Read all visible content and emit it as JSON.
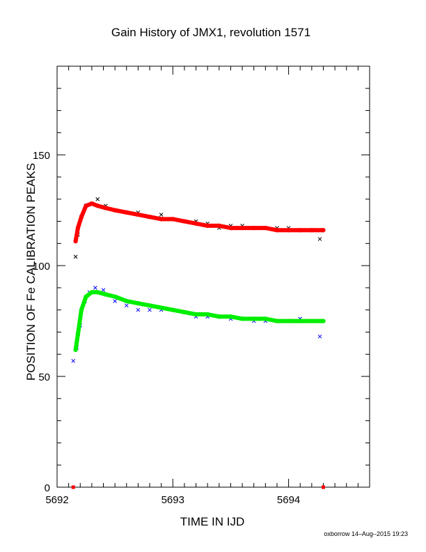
{
  "chart_data": {
    "type": "scatter",
    "title": "Gain History of JMX1, revolution 1571",
    "xlabel": "TIME IN IJD",
    "ylabel": "POSITION OF Fe CALIBRATION PEAKS",
    "xlim": [
      5692.0,
      5694.7
    ],
    "ylim": [
      0,
      190
    ],
    "x_ticks": [
      5692,
      5693,
      5694
    ],
    "x_tick_labels": [
      "5692",
      "5693",
      "5694"
    ],
    "y_ticks": [
      0,
      50,
      100,
      150
    ],
    "y_tick_labels": [
      "0",
      "50",
      "100",
      "150"
    ],
    "grid": false,
    "legend": "none",
    "colors": {
      "upper_points": "#000000",
      "upper_fit": "#ff0000",
      "lower_points": "#0000ff",
      "lower_fit": "#00ee00"
    },
    "series": [
      {
        "role": "upper_peak_measurements",
        "marker": "x",
        "color": "#000000",
        "x": [
          5692.16,
          5692.18,
          5692.21,
          5692.25,
          5692.3,
          5692.35,
          5692.42,
          5692.5,
          5692.6,
          5692.7,
          5692.8,
          5692.9,
          5693.0,
          5693.1,
          5693.2,
          5693.3,
          5693.4,
          5693.5,
          5693.6,
          5693.7,
          5693.8,
          5693.9,
          5694.0,
          5694.1,
          5694.2,
          5694.27
        ],
        "y": [
          104,
          114,
          122,
          127,
          128,
          130,
          127,
          125,
          124,
          124,
          122,
          123,
          121,
          120,
          120,
          119,
          117,
          118,
          118,
          117,
          117,
          117,
          117,
          116,
          116,
          112
        ]
      },
      {
        "role": "upper_peak_fit",
        "marker": "+",
        "color": "#ff0000",
        "x": [
          5692.16,
          5692.18,
          5692.21,
          5692.25,
          5692.3,
          5692.35,
          5692.42,
          5692.5,
          5692.6,
          5692.7,
          5692.8,
          5692.9,
          5693.0,
          5693.1,
          5693.2,
          5693.3,
          5693.4,
          5693.5,
          5693.6,
          5693.7,
          5693.8,
          5693.9,
          5694.0,
          5694.1,
          5694.2,
          5694.3
        ],
        "y": [
          111,
          117,
          122,
          127,
          128,
          127,
          126,
          125,
          124,
          123,
          122,
          121,
          121,
          120,
          119,
          118,
          118,
          117,
          117,
          117,
          117,
          116,
          116,
          116,
          116,
          116
        ]
      },
      {
        "role": "lower_peak_measurements",
        "marker": "x",
        "color": "#0000ff",
        "x": [
          5692.14,
          5692.17,
          5692.2,
          5692.24,
          5692.28,
          5692.33,
          5692.4,
          5692.5,
          5692.6,
          5692.7,
          5692.8,
          5692.9,
          5693.0,
          5693.1,
          5693.2,
          5693.3,
          5693.4,
          5693.5,
          5693.6,
          5693.7,
          5693.8,
          5693.9,
          5694.0,
          5694.1,
          5694.2,
          5694.27
        ],
        "y": [
          57,
          63,
          73,
          84,
          88,
          90,
          89,
          84,
          82,
          80,
          80,
          80,
          80,
          79,
          77,
          77,
          77,
          76,
          76,
          75,
          75,
          75,
          75,
          76,
          75,
          68
        ]
      },
      {
        "role": "lower_peak_fit",
        "marker": "+",
        "color": "#00ee00",
        "x": [
          5692.16,
          5692.18,
          5692.21,
          5692.25,
          5692.3,
          5692.35,
          5692.42,
          5692.5,
          5692.6,
          5692.7,
          5692.8,
          5692.9,
          5693.0,
          5693.1,
          5693.2,
          5693.3,
          5693.4,
          5693.5,
          5693.6,
          5693.7,
          5693.8,
          5693.9,
          5694.0,
          5694.1,
          5694.2,
          5694.3
        ],
        "y": [
          62,
          69,
          80,
          86,
          88,
          88,
          87,
          86,
          84,
          83,
          82,
          81,
          80,
          79,
          78,
          78,
          77,
          77,
          76,
          76,
          76,
          75,
          75,
          75,
          75,
          75
        ]
      }
    ],
    "markers_on_axis": [
      {
        "x": 5692.14,
        "y": 0,
        "color": "#ff0000"
      },
      {
        "x": 5694.3,
        "y": 0,
        "color": "#ff0000"
      }
    ],
    "footer": "oxborrow 14–Aug–2015 19:23"
  }
}
